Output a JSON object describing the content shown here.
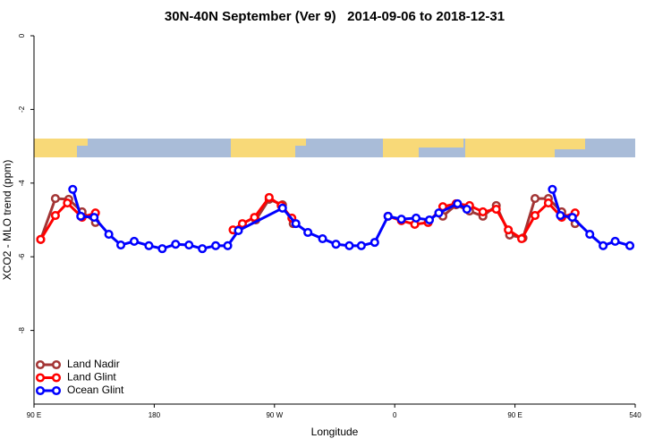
{
  "chart_data": {
    "type": "line",
    "title": "30N-40N September (Ver 9)   2014-09-06 to 2018-12-31",
    "xlabel": "Longitude",
    "ylabel": "XCO2 - MLO trend (ppm)",
    "xlim": [
      90,
      540
    ],
    "ylim": [
      -10,
      0
    ],
    "xticks": [
      {
        "value": 90,
        "label": "90 E"
      },
      180,
      {
        "value": 270,
        "label": "90 W"
      },
      {
        "value": 360,
        "label": "0"
      },
      {
        "value": 450,
        "label": "90 E"
      },
      540
    ],
    "yticks": [
      0,
      -2,
      -4,
      -6,
      -8
    ],
    "legend": "bottom-left",
    "series": [
      {
        "name": "Land Nadir",
        "color": "#a33535",
        "x": [
          95,
          106,
          116,
          126,
          136,
          196,
          256,
          266,
          276,
          284,
          340,
          396,
          406,
          416,
          426,
          436,
          446,
          456,
          465,
          475,
          485,
          495
        ],
        "values": [
          -5.53,
          -4.42,
          -4.44,
          -4.78,
          -5.07,
          null,
          -5.0,
          -4.44,
          -4.59,
          -5.1,
          null,
          -4.9,
          -4.59,
          -4.76,
          -4.9,
          -4.61,
          -5.41,
          -5.49,
          -4.42,
          -4.42,
          -4.78,
          -5.1
        ]
      },
      {
        "name": "Land Glint",
        "color": "#ff0000",
        "x": [
          95,
          106,
          115,
          126,
          136,
          187,
          239,
          246,
          255,
          266,
          275,
          283,
          319,
          355,
          365,
          375,
          385,
          396,
          406,
          416,
          426,
          436,
          445,
          455,
          465,
          475,
          485,
          495
        ],
        "values": [
          -5.53,
          -4.88,
          -4.54,
          -4.93,
          -4.81,
          null,
          -5.27,
          -5.1,
          -4.93,
          -4.39,
          -4.61,
          -4.95,
          null,
          -4.9,
          -5.02,
          -5.12,
          -5.07,
          -4.64,
          -4.56,
          -4.61,
          -4.78,
          -4.71,
          -5.27,
          -5.51,
          -4.88,
          -4.54,
          -4.93,
          -4.81
        ]
      },
      {
        "name": "Ocean Glint",
        "color": "#0000ff",
        "x": [
          119,
          125,
          135,
          146,
          155,
          165,
          176,
          186,
          196,
          206,
          216,
          226,
          235,
          243,
          276,
          286,
          295,
          306,
          316,
          326,
          335,
          345,
          355,
          365,
          376,
          386,
          393,
          407,
          414,
          446,
          478,
          484,
          493,
          506,
          516,
          525,
          536
        ],
        "values": [
          -4.17,
          -4.9,
          -4.93,
          -5.39,
          -5.68,
          -5.58,
          -5.7,
          -5.78,
          -5.66,
          -5.68,
          -5.78,
          -5.7,
          -5.7,
          -5.29,
          -4.68,
          -5.1,
          -5.34,
          -5.51,
          -5.66,
          -5.7,
          -5.7,
          -5.61,
          -4.9,
          -4.98,
          -4.95,
          -5.0,
          -4.81,
          -4.56,
          -4.71,
          null,
          -4.17,
          -4.88,
          -4.93,
          -5.39,
          -5.7,
          -5.58,
          -5.7
        ]
      }
    ]
  }
}
